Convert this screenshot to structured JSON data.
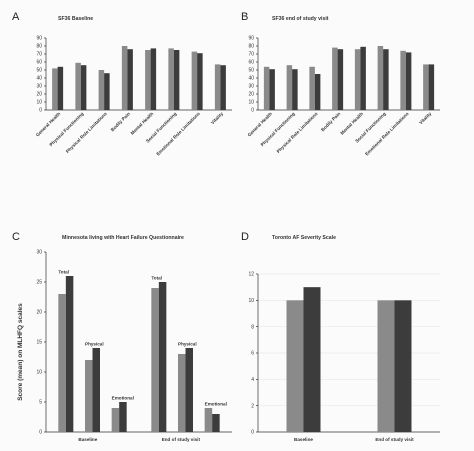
{
  "colors": {
    "series_light": "#8a8a8a",
    "series_dark": "#3c3c3c",
    "axis": "#333333"
  },
  "chart_data": [
    {
      "panel": "A",
      "type": "bar",
      "title": "SF36 Baseline",
      "categories": [
        "General Health",
        "Physical Functioning",
        "Physical Role Limitations",
        "Bodily Pain",
        "Mental Health",
        "Social Functioning",
        "Emotional Role Limitations",
        "Vitality"
      ],
      "series": [
        {
          "values": [
            52,
            59,
            50,
            80,
            75,
            77,
            73,
            57
          ]
        },
        {
          "values": [
            54,
            56,
            46,
            76,
            77,
            75,
            71,
            56
          ]
        }
      ],
      "ylim": [
        0,
        90
      ],
      "yticks": [
        0,
        10,
        20,
        30,
        40,
        50,
        60,
        70,
        80,
        90
      ],
      "xlabel": "",
      "ylabel": "",
      "grid": false,
      "legend": "none"
    },
    {
      "panel": "B",
      "type": "bar",
      "title": "SF36 end of study visit",
      "categories": [
        "General Health",
        "Physical Functioning",
        "Physical Role Limitations",
        "Bodily Pain",
        "Mental Health",
        "Social Functioning",
        "Emotional Role Limitations",
        "Vitality"
      ],
      "series": [
        {
          "values": [
            54,
            56,
            54,
            78,
            76,
            80,
            74,
            57
          ]
        },
        {
          "values": [
            51,
            51,
            45,
            76,
            79,
            76,
            72,
            57
          ]
        }
      ],
      "ylim": [
        0,
        90
      ],
      "yticks": [
        0,
        10,
        20,
        30,
        40,
        50,
        60,
        70,
        80,
        90
      ],
      "xlabel": "",
      "ylabel": "",
      "grid": false,
      "legend": "none"
    },
    {
      "panel": "C",
      "type": "bar",
      "title": "Minnesota living with Heart Failure Questionnaire",
      "groups": [
        "Baseline",
        "End of study visit"
      ],
      "subgroups": [
        "Total",
        "Physical",
        "Emotional"
      ],
      "series": [
        {
          "values": [
            [
              23,
              12,
              4
            ],
            [
              24,
              13,
              4
            ]
          ]
        },
        {
          "values": [
            [
              26,
              14,
              5
            ],
            [
              25,
              14,
              3
            ]
          ]
        }
      ],
      "ylim": [
        0,
        30
      ],
      "yticks": [
        0,
        5,
        10,
        15,
        20,
        25,
        30
      ],
      "xlabel": "",
      "ylabel": "Score (mean) on MLHFQ scales",
      "grid": false,
      "legend": "none"
    },
    {
      "panel": "D",
      "type": "bar",
      "title": "Toronto AF Severity Scale",
      "categories": [
        "Baseline",
        "End of study visit"
      ],
      "series": [
        {
          "values": [
            10,
            10
          ]
        },
        {
          "values": [
            11,
            10
          ]
        }
      ],
      "ylim": [
        0,
        12
      ],
      "yticks": [
        0,
        2,
        4,
        6,
        8,
        10,
        12
      ],
      "xlabel": "",
      "ylabel": "",
      "grid": true,
      "legend": "none"
    }
  ]
}
